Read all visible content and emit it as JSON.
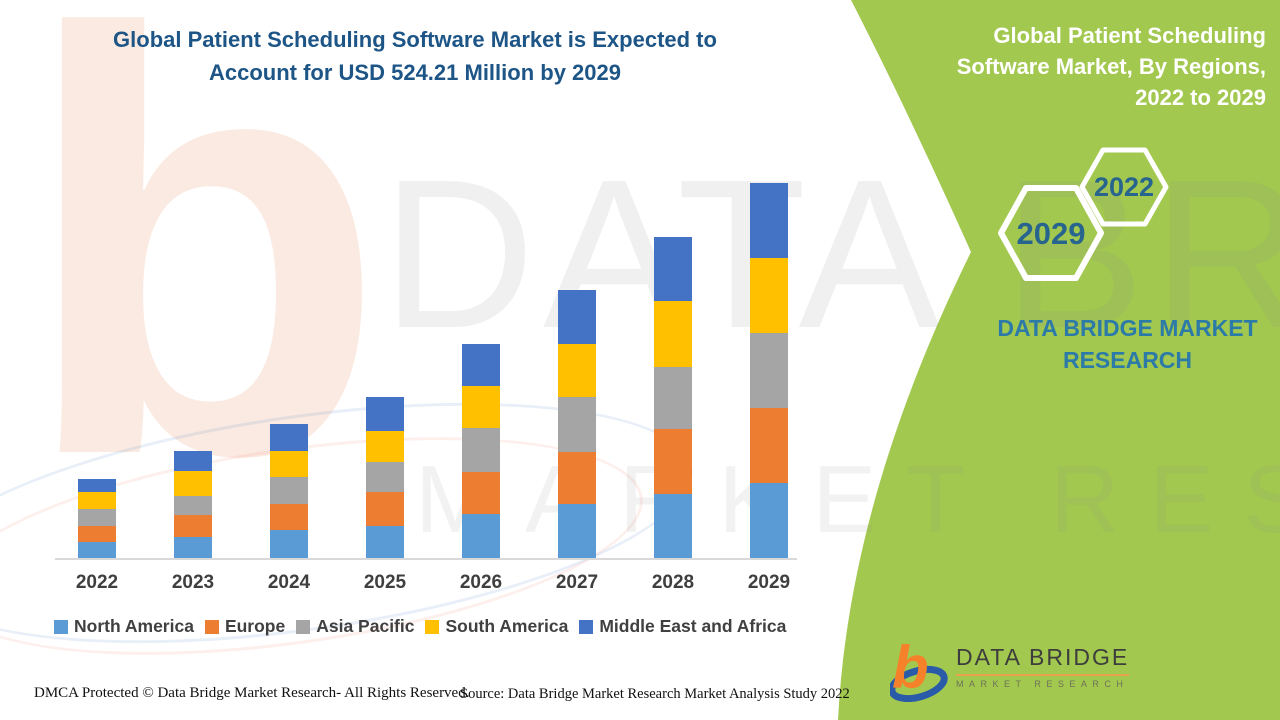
{
  "header": {
    "title_lines": [
      "Global Patient Scheduling Software Market is Expected to",
      "Account for USD 524.21 Million by 2029"
    ]
  },
  "side_panel": {
    "title_lines": [
      "Global Patient Scheduling",
      "Software Market, By Regions,",
      "2022 to 2029"
    ],
    "hexagon_small_label": "2022",
    "hexagon_large_label": "2029",
    "brand_text": "DATA BRIDGE MARKET RESEARCH",
    "background_color": "#a2c84f"
  },
  "chart_data": {
    "type": "bar",
    "stacked": true,
    "title": "Global Patient Scheduling Software Market is Expected to Account for USD 524.21 Million by 2029",
    "unit": "USD Million",
    "categories": [
      "2022",
      "2023",
      "2024",
      "2025",
      "2026",
      "2027",
      "2028",
      "2029"
    ],
    "series": [
      {
        "name": "North America",
        "color": "#5B9BD5",
        "values": [
          22.4,
          29.4,
          39.2,
          44.8,
          61.6,
          75.5,
          89.5,
          104.9
        ]
      },
      {
        "name": "Europe",
        "color": "#ED7D31",
        "values": [
          22.4,
          30.8,
          36.4,
          47.6,
          58.8,
          72.7,
          90.9,
          104.9
        ]
      },
      {
        "name": "Asia Pacific",
        "color": "#A5A5A5",
        "values": [
          23.8,
          26.6,
          37.8,
          42.0,
          61.6,
          76.9,
          86.7,
          104.9
        ]
      },
      {
        "name": "South America",
        "color": "#FFC000",
        "values": [
          23.8,
          35.0,
          36.4,
          43.4,
          58.8,
          74.1,
          92.3,
          104.9
        ]
      },
      {
        "name": "Middle East and Africa",
        "color": "#4472C4",
        "values": [
          18.2,
          28.0,
          37.8,
          47.6,
          58.8,
          75.5,
          89.5,
          104.6
        ]
      }
    ],
    "totals": [
      110.6,
      149.8,
      187.6,
      225.4,
      299.6,
      374.7,
      449.0,
      524.21
    ],
    "y_axis_visible": false,
    "grid": false,
    "legend_position": "bottom",
    "values_note": "Only the 2029 total (USD 524.21 Million) is printed on the image; per-region values are estimated from bar heights."
  },
  "watermark": {
    "letter": "b",
    "line1": "DATA BRIDGE",
    "line2": "MARKET RESEARCH"
  },
  "logo": {
    "name": "DATA BRIDGE",
    "subtext": "MARKET RESEARCH"
  },
  "footer": {
    "left": "DMCA Protected © Data Bridge Market Research- All Rights Reserved.",
    "right": "Source: Data Bridge Market Research Market Analysis Study 2022"
  }
}
